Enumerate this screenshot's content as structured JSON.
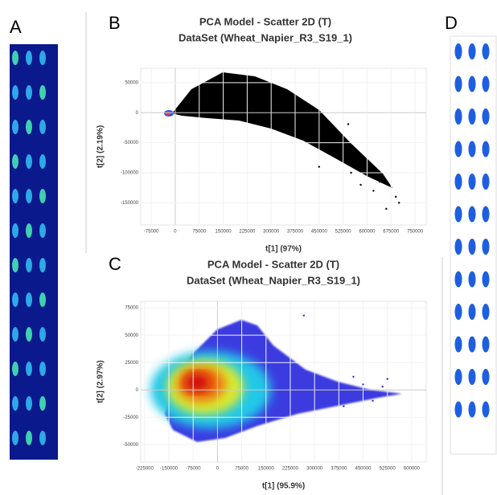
{
  "panel_labels": [
    "A",
    "B",
    "C",
    "D"
  ],
  "chart_data": [
    {
      "type": "scatter",
      "title": "PCA Model - Scatter 2D (T)",
      "subtitle": "DataSet (Wheat_Napier_R3_S19_1)",
      "x_label": "t[1] (97%)",
      "y_label": "t[2] (2.19%)",
      "color": "#000000",
      "grid": true,
      "xlim": [
        -108000,
        785000
      ],
      "ylim": [
        -187000,
        74000
      ],
      "xticks": [
        -75000,
        0,
        75000,
        150000,
        225000,
        300000,
        375000,
        450000,
        525000,
        600000,
        675000,
        750000
      ],
      "yticks": [
        50000,
        0,
        -50000,
        -100000,
        -150000
      ],
      "x": [
        690000,
        660000,
        620000,
        550000,
        450000,
        541000,
        640000,
        580000,
        700000
      ],
      "y": [
        -140000,
        -160000,
        -130000,
        -100000,
        -90000,
        -19000,
        -115000,
        -120000,
        -150000
      ]
    },
    {
      "type": "scatter",
      "title": "PCA Model - Scatter 2D (T)",
      "subtitle": "DataSet (Wheat_Napier_R3_S19_1)",
      "x_label": "t[1] (95.9%)",
      "y_label": "t[2] (2.97%)",
      "color": "#3030d0",
      "grid": true,
      "xlim": [
        -237000,
        645000
      ],
      "ylim": [
        -66000,
        81000
      ],
      "xticks": [
        -225000,
        -150000,
        -75000,
        0,
        75000,
        150000,
        225000,
        300000,
        375000,
        450000,
        525000,
        600000
      ],
      "yticks": [
        75000,
        50000,
        25000,
        0,
        -25000,
        -50000
      ],
      "x": [
        450000,
        500000,
        525000,
        480000,
        267000,
        420000,
        390000,
        510000
      ],
      "y": [
        5000,
        -5000,
        10000,
        -10000,
        68000,
        12000,
        -15000,
        3000
      ]
    }
  ]
}
